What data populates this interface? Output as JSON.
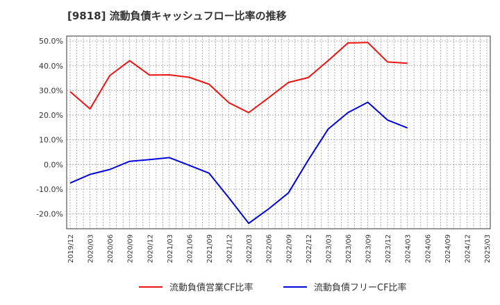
{
  "chart_data": {
    "type": "line",
    "title": "[9818]  流動負債キャッシュフロー比率の推移",
    "xlabel": "",
    "ylabel": "",
    "ylim": [
      -26,
      52
    ],
    "yticks": [
      50,
      40,
      30,
      20,
      10,
      0,
      -10,
      -20
    ],
    "ytick_labels": [
      "50.0%",
      "40.0%",
      "30.0%",
      "20.0%",
      "10.0%",
      "0.0%",
      "-10.0%",
      "-20.0%"
    ],
    "categories": [
      "2019/12",
      "2020/03",
      "2020/06",
      "2020/09",
      "2020/12",
      "2021/03",
      "2021/06",
      "2021/09",
      "2021/12",
      "2022/03",
      "2022/06",
      "2022/09",
      "2022/12",
      "2023/03",
      "2023/06",
      "2023/09",
      "2023/12",
      "2024/03",
      "2024/06",
      "2024/09",
      "2024/12",
      "2025/03"
    ],
    "series": [
      {
        "name": "流動負債営業CF比率",
        "color": "#ee1111",
        "values": [
          29.5,
          22.5,
          36.0,
          42.0,
          36.2,
          36.3,
          35.3,
          32.5,
          25.0,
          21.0,
          27.0,
          33.2,
          35.2,
          42.0,
          49.2,
          49.4,
          41.5,
          41.0,
          null,
          null,
          null,
          null
        ]
      },
      {
        "name": "流動負債フリーCF比率",
        "color": "#0000dd",
        "values": [
          -7.5,
          -4.0,
          -2.0,
          1.3,
          2.0,
          2.8,
          -0.3,
          -3.5,
          -13.5,
          -23.8,
          -18.0,
          -11.5,
          1.8,
          14.3,
          21.0,
          25.2,
          18.0,
          14.8,
          null,
          null,
          null,
          null
        ]
      }
    ],
    "grid": true,
    "legend_position": "bottom-center"
  },
  "colors": {
    "background": "#ffffff",
    "grid": "#999999",
    "axis": "#333333"
  }
}
